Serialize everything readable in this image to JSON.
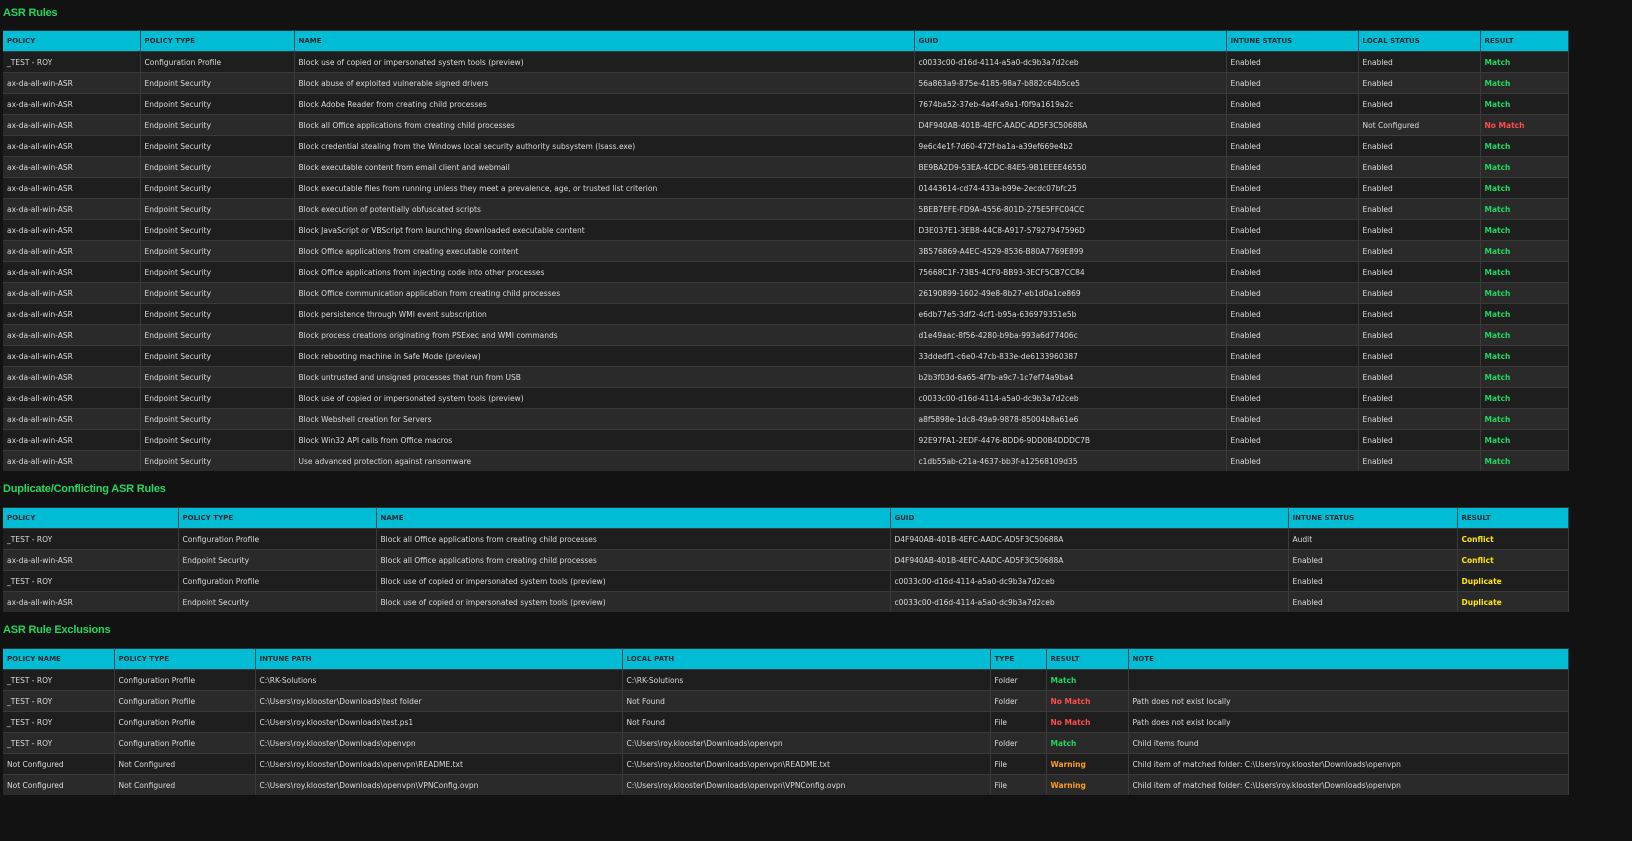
{
  "colors": {
    "header": "#00bcd4",
    "title": "#1ed760",
    "match": "#1ed760",
    "no_match": "#ff4d4d",
    "conflict": "#ffe600",
    "warning": "#ff9f1a"
  },
  "asr_rules": {
    "title": "ASR Rules",
    "columns": [
      "POLICY",
      "POLICY TYPE",
      "NAME",
      "GUID",
      "INTUNE STATUS",
      "LOCAL STATUS",
      "RESULT"
    ],
    "rows": [
      [
        "_TEST - ROY",
        "Configuration Profile",
        "Block use of copied or impersonated system tools (preview)",
        "c0033c00-d16d-4114-a5a0-dc9b3a7d2ceb",
        "Enabled",
        "Enabled",
        "Match"
      ],
      [
        "ax-da-all-win-ASR",
        "Endpoint Security",
        "Block abuse of exploited vulnerable signed drivers",
        "56a863a9-875e-4185-98a7-b882c64b5ce5",
        "Enabled",
        "Enabled",
        "Match"
      ],
      [
        "ax-da-all-win-ASR",
        "Endpoint Security",
        "Block Adobe Reader from creating child processes",
        "7674ba52-37eb-4a4f-a9a1-f0f9a1619a2c",
        "Enabled",
        "Enabled",
        "Match"
      ],
      [
        "ax-da-all-win-ASR",
        "Endpoint Security",
        "Block all Office applications from creating child processes",
        "D4F940AB-401B-4EFC-AADC-AD5F3C50688A",
        "Enabled",
        "Not Configured",
        "No Match"
      ],
      [
        "ax-da-all-win-ASR",
        "Endpoint Security",
        "Block credential stealing from the Windows local security authority subsystem (lsass.exe)",
        "9e6c4e1f-7d60-472f-ba1a-a39ef669e4b2",
        "Enabled",
        "Enabled",
        "Match"
      ],
      [
        "ax-da-all-win-ASR",
        "Endpoint Security",
        "Block executable content from email client and webmail",
        "BE9BA2D9-53EA-4CDC-84E5-9B1EEEE46550",
        "Enabled",
        "Enabled",
        "Match"
      ],
      [
        "ax-da-all-win-ASR",
        "Endpoint Security",
        "Block executable files from running unless they meet a prevalence, age, or trusted list criterion",
        "01443614-cd74-433a-b99e-2ecdc07bfc25",
        "Enabled",
        "Enabled",
        "Match"
      ],
      [
        "ax-da-all-win-ASR",
        "Endpoint Security",
        "Block execution of potentially obfuscated scripts",
        "5BEB7EFE-FD9A-4556-801D-275E5FFC04CC",
        "Enabled",
        "Enabled",
        "Match"
      ],
      [
        "ax-da-all-win-ASR",
        "Endpoint Security",
        "Block JavaScript or VBScript from launching downloaded executable content",
        "D3E037E1-3EB8-44C8-A917-57927947596D",
        "Enabled",
        "Enabled",
        "Match"
      ],
      [
        "ax-da-all-win-ASR",
        "Endpoint Security",
        "Block Office applications from creating executable content",
        "3B576869-A4EC-4529-8536-B80A7769E899",
        "Enabled",
        "Enabled",
        "Match"
      ],
      [
        "ax-da-all-win-ASR",
        "Endpoint Security",
        "Block Office applications from injecting code into other processes",
        "75668C1F-73B5-4CF0-BB93-3ECF5CB7CC84",
        "Enabled",
        "Enabled",
        "Match"
      ],
      [
        "ax-da-all-win-ASR",
        "Endpoint Security",
        "Block Office communication application from creating child processes",
        "26190899-1602-49e8-8b27-eb1d0a1ce869",
        "Enabled",
        "Enabled",
        "Match"
      ],
      [
        "ax-da-all-win-ASR",
        "Endpoint Security",
        "Block persistence through WMI event subscription",
        "e6db77e5-3df2-4cf1-b95a-636979351e5b",
        "Enabled",
        "Enabled",
        "Match"
      ],
      [
        "ax-da-all-win-ASR",
        "Endpoint Security",
        "Block process creations originating from PSExec and WMI commands",
        "d1e49aac-8f56-4280-b9ba-993a6d77406c",
        "Enabled",
        "Enabled",
        "Match"
      ],
      [
        "ax-da-all-win-ASR",
        "Endpoint Security",
        "Block rebooting machine in Safe Mode (preview)",
        "33ddedf1-c6e0-47cb-833e-de6133960387",
        "Enabled",
        "Enabled",
        "Match"
      ],
      [
        "ax-da-all-win-ASR",
        "Endpoint Security",
        "Block untrusted and unsigned processes that run from USB",
        "b2b3f03d-6a65-4f7b-a9c7-1c7ef74a9ba4",
        "Enabled",
        "Enabled",
        "Match"
      ],
      [
        "ax-da-all-win-ASR",
        "Endpoint Security",
        "Block use of copied or impersonated system tools (preview)",
        "c0033c00-d16d-4114-a5a0-dc9b3a7d2ceb",
        "Enabled",
        "Enabled",
        "Match"
      ],
      [
        "ax-da-all-win-ASR",
        "Endpoint Security",
        "Block Webshell creation for Servers",
        "a8f5898e-1dc8-49a9-9878-85004b8a61e6",
        "Enabled",
        "Enabled",
        "Match"
      ],
      [
        "ax-da-all-win-ASR",
        "Endpoint Security",
        "Block Win32 API calls from Office macros",
        "92E97FA1-2EDF-4476-BDD6-9DD0B4DDDC7B",
        "Enabled",
        "Enabled",
        "Match"
      ],
      [
        "ax-da-all-win-ASR",
        "Endpoint Security",
        "Use advanced protection against ransomware",
        "c1db55ab-c21a-4637-bb3f-a12568109d35",
        "Enabled",
        "Enabled",
        "Match"
      ]
    ]
  },
  "conflicts": {
    "title": "Duplicate/Conflicting ASR Rules",
    "columns": [
      "POLICY",
      "POLICY TYPE",
      "NAME",
      "GUID",
      "INTUNE STATUS",
      "RESULT"
    ],
    "rows": [
      [
        "_TEST - ROY",
        "Configuration Profile",
        "Block all Office applications from creating child processes",
        "D4F940AB-401B-4EFC-AADC-AD5F3C50688A",
        "Audit",
        "Conflict"
      ],
      [
        "ax-da-all-win-ASR",
        "Endpoint Security",
        "Block all Office applications from creating child processes",
        "D4F940AB-401B-4EFC-AADC-AD5F3C50688A",
        "Enabled",
        "Conflict"
      ],
      [
        "_TEST - ROY",
        "Configuration Profile",
        "Block use of copied or impersonated system tools (preview)",
        "c0033c00-d16d-4114-a5a0-dc9b3a7d2ceb",
        "Enabled",
        "Duplicate"
      ],
      [
        "ax-da-all-win-ASR",
        "Endpoint Security",
        "Block use of copied or impersonated system tools (preview)",
        "c0033c00-d16d-4114-a5a0-dc9b3a7d2ceb",
        "Enabled",
        "Duplicate"
      ]
    ]
  },
  "exclusions": {
    "title": "ASR Rule Exclusions",
    "columns": [
      "POLICY NAME",
      "POLICY TYPE",
      "INTUNE PATH",
      "LOCAL PATH",
      "TYPE",
      "RESULT",
      "NOTE"
    ],
    "rows": [
      [
        "_TEST - ROY",
        "Configuration Profile",
        "C:\\RK-Solutions",
        "C:\\RK-Solutions",
        "Folder",
        "Match",
        ""
      ],
      [
        "_TEST - ROY",
        "Configuration Profile",
        "C:\\Users\\roy.klooster\\Downloads\\test folder",
        "Not Found",
        "Folder",
        "No Match",
        "Path does not exist locally"
      ],
      [
        "_TEST - ROY",
        "Configuration Profile",
        "C:\\Users\\roy.klooster\\Downloads\\test.ps1",
        "Not Found",
        "File",
        "No Match",
        "Path does not exist locally"
      ],
      [
        "_TEST - ROY",
        "Configuration Profile",
        "C:\\Users\\roy.klooster\\Downloads\\openvpn",
        "C:\\Users\\roy.klooster\\Downloads\\openvpn",
        "Folder",
        "Match",
        "Child items found"
      ],
      [
        "Not Configured",
        "Not Configured",
        "C:\\Users\\roy.klooster\\Downloads\\openvpn\\README.txt",
        "C:\\Users\\roy.klooster\\Downloads\\openvpn\\README.txt",
        "File",
        "Warning",
        "Child item of matched folder: C:\\Users\\roy.klooster\\Downloads\\openvpn"
      ],
      [
        "Not Configured",
        "Not Configured",
        "C:\\Users\\roy.klooster\\Downloads\\openvpn\\VPNConfig.ovpn",
        "C:\\Users\\roy.klooster\\Downloads\\openvpn\\VPNConfig.ovpn",
        "File",
        "Warning",
        "Child item of matched folder: C:\\Users\\roy.klooster\\Downloads\\openvpn"
      ]
    ]
  }
}
